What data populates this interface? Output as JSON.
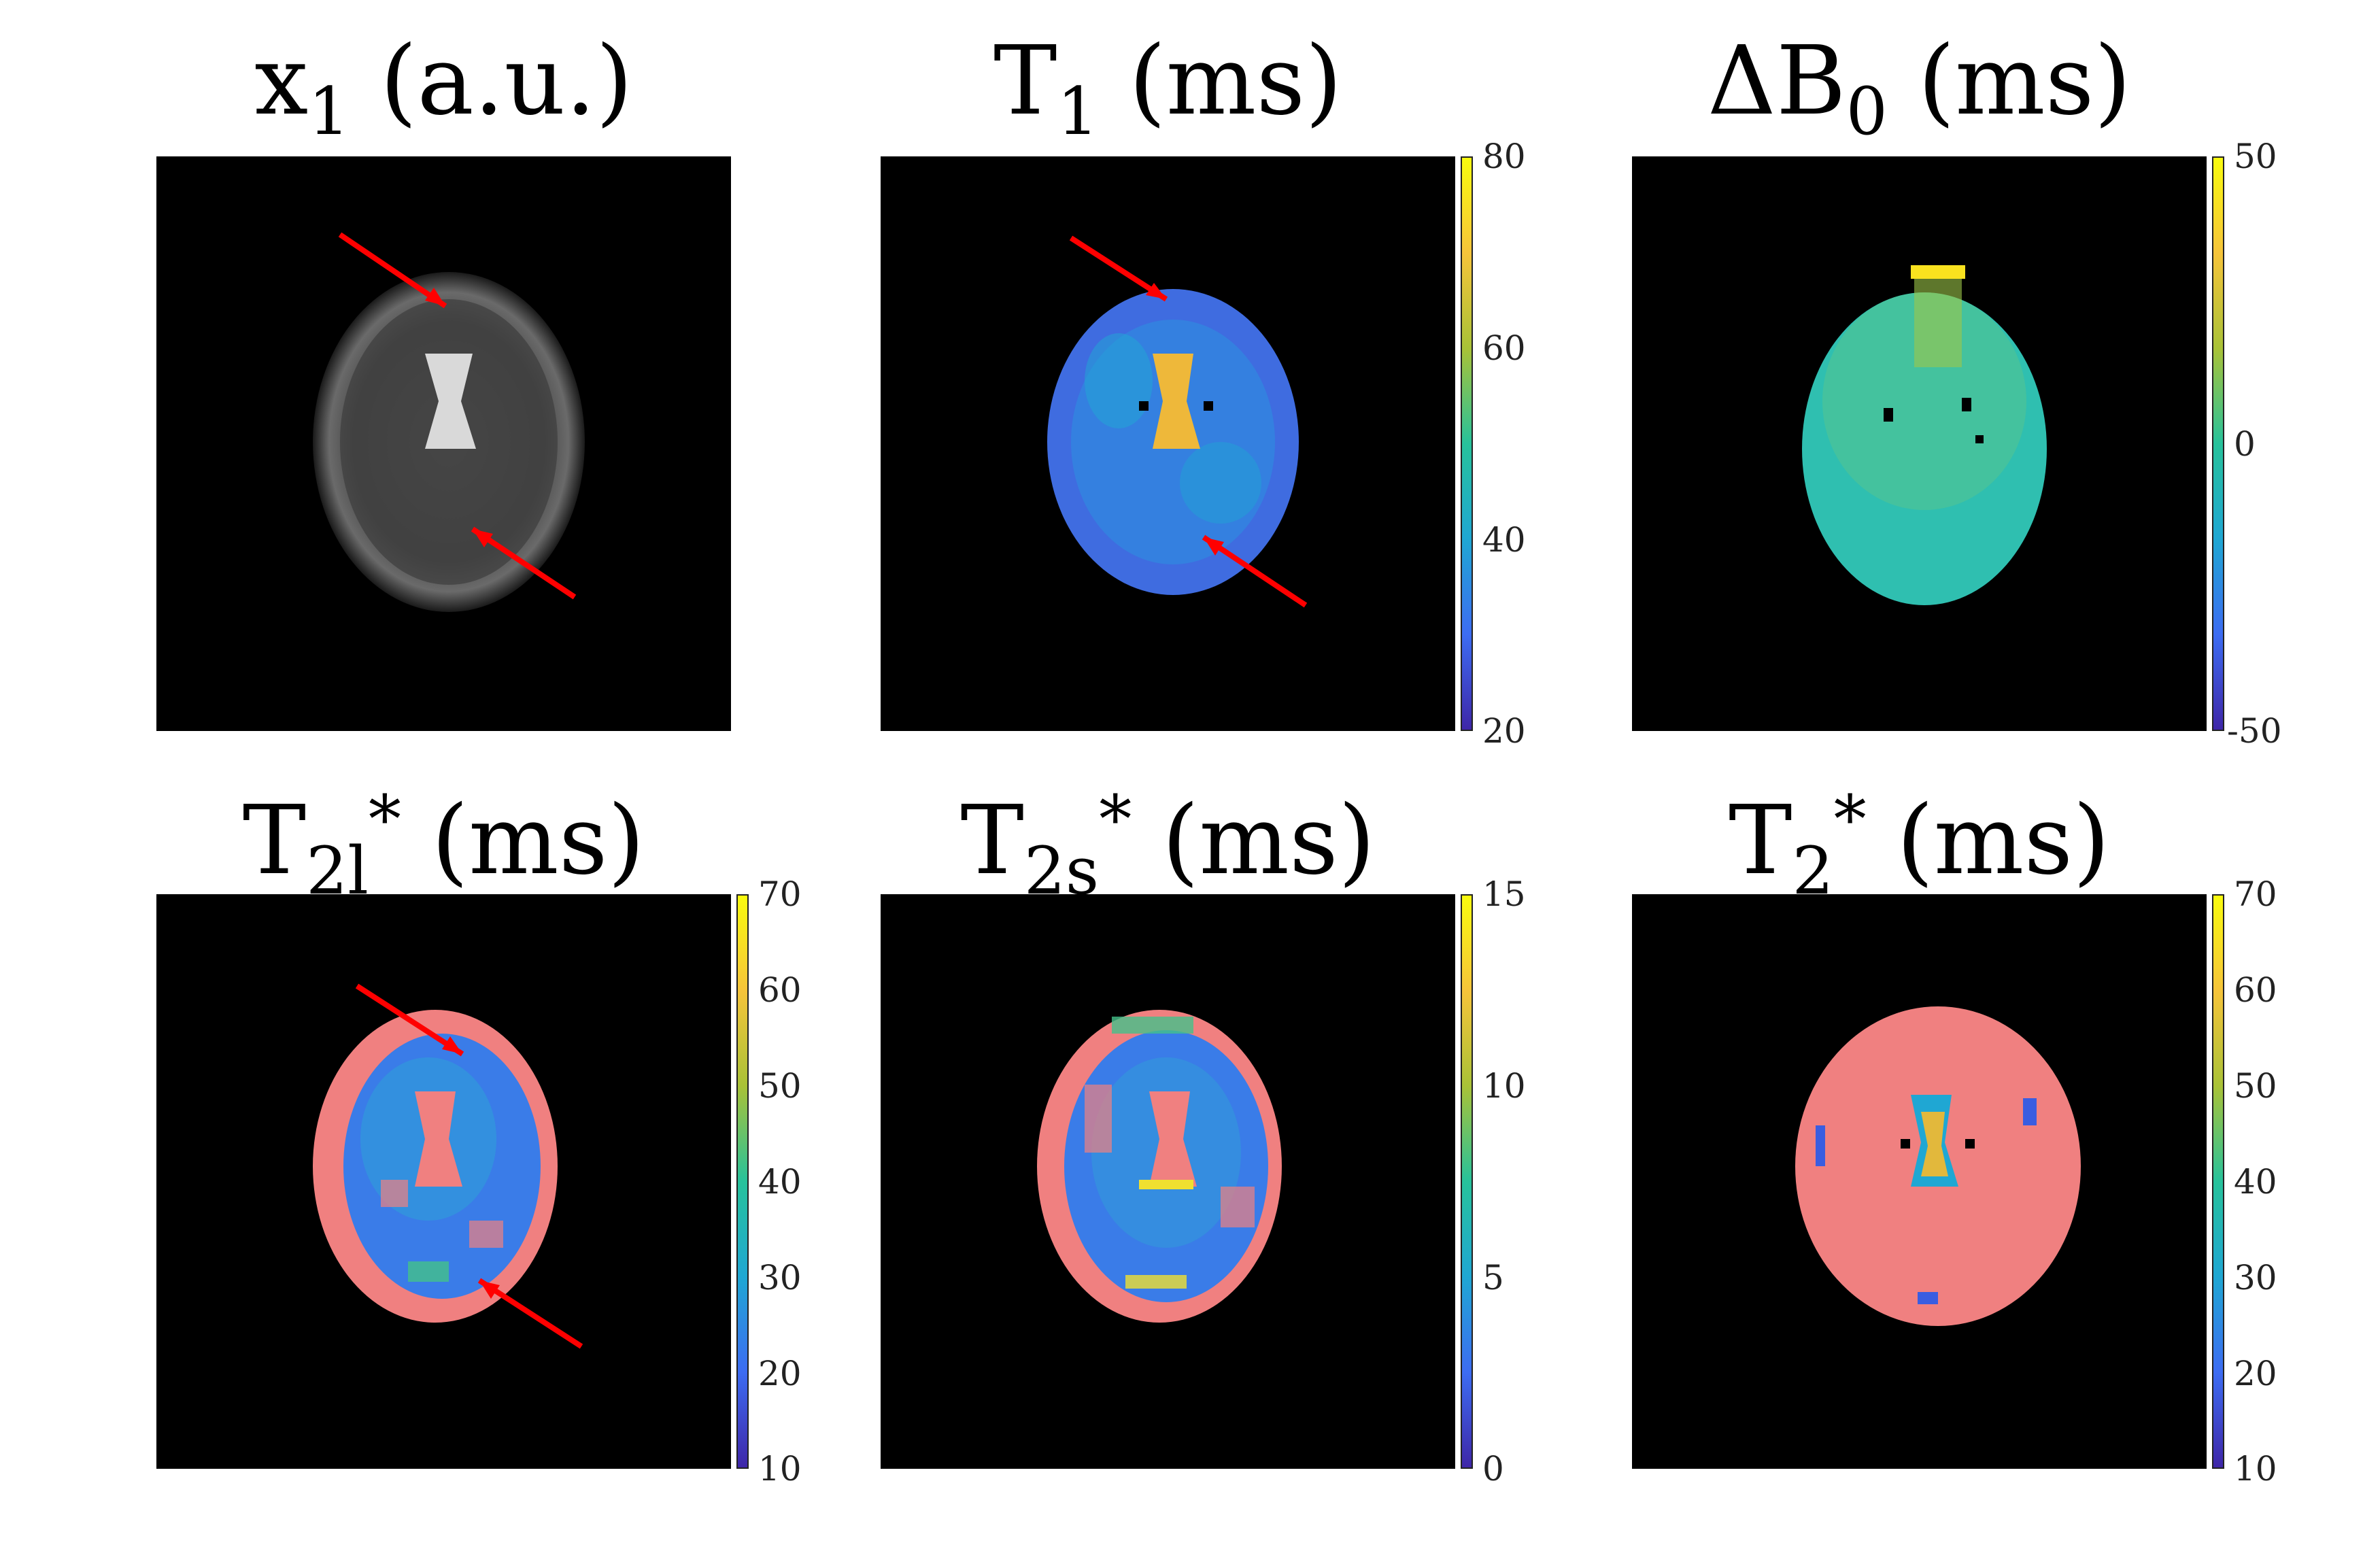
{
  "panels": [
    {
      "title_main": "x",
      "title_sub": "1",
      "title_sup": "",
      "title_tail": " (a.u.)",
      "colorbar": null,
      "map": "grayscale-brain",
      "arrows": 2
    },
    {
      "title_main": "T",
      "title_sub": "1",
      "title_sup": "",
      "title_tail": " (ms)",
      "colorbar": {
        "ticks": [
          "80",
          "60",
          "40",
          "20"
        ],
        "min": 20,
        "max": 80
      },
      "map": "parula-brain",
      "arrows": 2
    },
    {
      "title_main": "ΔB",
      "title_sub": "0",
      "title_sup": "",
      "title_tail": " (ms)",
      "colorbar": {
        "ticks": [
          "50",
          "0",
          "-50"
        ],
        "min": -50,
        "max": 50
      },
      "map": "parula-field",
      "arrows": 0
    },
    {
      "title_main": "T",
      "title_sub": "2l",
      "title_sup": "*",
      "title_tail": " (ms)",
      "colorbar": {
        "ticks": [
          "70",
          "60",
          "50",
          "40",
          "30",
          "20",
          "10"
        ],
        "min": 10,
        "max": 70
      },
      "map": "parula-brain-pink",
      "arrows": 2
    },
    {
      "title_main": "T",
      "title_sub": "2s",
      "title_sup": "*",
      "title_tail": " (ms)",
      "colorbar": {
        "ticks": [
          "15",
          "10",
          "5",
          "0"
        ],
        "min": 0,
        "max": 15
      },
      "map": "parula-brain-pink",
      "arrows": 0
    },
    {
      "title_main": "T",
      "title_sub": "2",
      "title_sup": "*",
      "title_tail": " (ms)",
      "colorbar": {
        "ticks": [
          "70",
          "60",
          "50",
          "40",
          "30",
          "20",
          "10"
        ],
        "min": 10,
        "max": 70
      },
      "map": "pink-brain",
      "arrows": 0
    }
  ],
  "colors": {
    "arrow": "#ff0000",
    "parula_low": "#3e26a8",
    "parula_mid": "#1fa7d3",
    "parula_high": "#f9fb0e",
    "overlay_pink": "#f08080"
  }
}
